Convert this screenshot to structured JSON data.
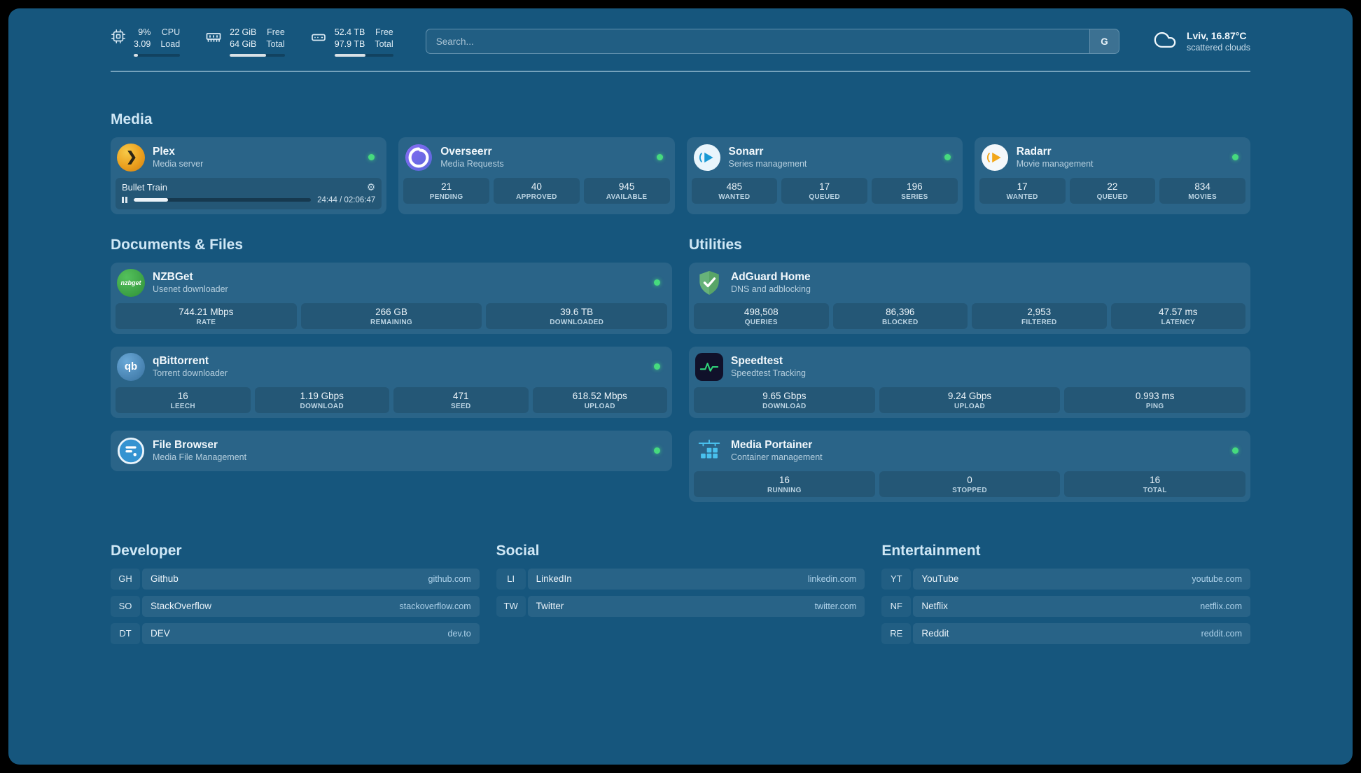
{
  "window": {
    "background": "#16567d",
    "status_green": "#46da7e"
  },
  "header": {
    "cpu": {
      "icon": "cpu-chip-icon",
      "percent": "9%",
      "load": "3.09",
      "label_top": "CPU",
      "label_bottom": "Load",
      "bar_percent": 9
    },
    "memory": {
      "icon": "ram-icon",
      "free": "22 GiB",
      "total": "64 GiB",
      "label_top": "Free",
      "label_bottom": "Total",
      "bar_percent": 66
    },
    "disk": {
      "icon": "hard-drive-icon",
      "free": "52.4 TB",
      "total": "97.9 TB",
      "label_top": "Free",
      "label_bottom": "Total",
      "bar_percent": 53
    },
    "search": {
      "placeholder": "Search...",
      "provider_label": "G"
    },
    "weather": {
      "icon": "cloud-icon",
      "location": "Lviv, 16.87°C",
      "condition": "scattered clouds"
    }
  },
  "sections": {
    "media": "Media",
    "documents": "Documents & Files",
    "utilities": "Utilities"
  },
  "services": {
    "plex": {
      "name": "Plex",
      "desc": "Media server",
      "icon": "plex-icon",
      "online": true,
      "now_playing": {
        "title": "Bullet Train",
        "time": "24:44 / 02:06:47",
        "progress_percent": 19.5
      }
    },
    "overseerr": {
      "name": "Overseerr",
      "desc": "Media Requests",
      "icon": "overseerr-icon",
      "online": true,
      "stats": [
        {
          "value": "21",
          "label": "PENDING"
        },
        {
          "value": "40",
          "label": "APPROVED"
        },
        {
          "value": "945",
          "label": "AVAILABLE"
        }
      ]
    },
    "sonarr": {
      "name": "Sonarr",
      "desc": "Series management",
      "icon": "sonarr-icon",
      "online": true,
      "stats": [
        {
          "value": "485",
          "label": "WANTED"
        },
        {
          "value": "17",
          "label": "QUEUED"
        },
        {
          "value": "196",
          "label": "SERIES"
        }
      ]
    },
    "radarr": {
      "name": "Radarr",
      "desc": "Movie management",
      "icon": "radarr-icon",
      "online": true,
      "stats": [
        {
          "value": "17",
          "label": "WANTED"
        },
        {
          "value": "22",
          "label": "QUEUED"
        },
        {
          "value": "834",
          "label": "MOVIES"
        }
      ]
    },
    "nzbget": {
      "name": "NZBGet",
      "desc": "Usenet downloader",
      "icon": "nzbget-icon",
      "icon_text": "nzbget",
      "online": true,
      "stats": [
        {
          "value": "744.21 Mbps",
          "label": "RATE"
        },
        {
          "value": "266 GB",
          "label": "REMAINING"
        },
        {
          "value": "39.6 TB",
          "label": "DOWNLOADED"
        }
      ]
    },
    "qbittorrent": {
      "name": "qBittorrent",
      "desc": "Torrent downloader",
      "icon": "qbittorrent-icon",
      "icon_text": "qb",
      "online": true,
      "stats": [
        {
          "value": "16",
          "label": "LEECH"
        },
        {
          "value": "1.19 Gbps",
          "label": "DOWNLOAD"
        },
        {
          "value": "471",
          "label": "SEED"
        },
        {
          "value": "618.52 Mbps",
          "label": "UPLOAD"
        }
      ]
    },
    "filebrowser": {
      "name": "File Browser",
      "desc": "Media File Management",
      "icon": "filebrowser-icon",
      "online": true
    },
    "adguard": {
      "name": "AdGuard Home",
      "desc": "DNS and adblocking",
      "icon": "adguard-shield-icon",
      "stats": [
        {
          "value": "498,508",
          "label": "QUERIES"
        },
        {
          "value": "86,396",
          "label": "BLOCKED"
        },
        {
          "value": "2,953",
          "label": "FILTERED"
        },
        {
          "value": "47.57 ms",
          "label": "LATENCY"
        }
      ]
    },
    "speedtest": {
      "name": "Speedtest",
      "desc": "Speedtest Tracking",
      "icon": "speedtest-icon",
      "stats": [
        {
          "value": "9.65 Gbps",
          "label": "DOWNLOAD"
        },
        {
          "value": "9.24 Gbps",
          "label": "UPLOAD"
        },
        {
          "value": "0.993 ms",
          "label": "PING"
        }
      ]
    },
    "portainer": {
      "name": "Media Portainer",
      "desc": "Container management",
      "icon": "portainer-icon",
      "online": true,
      "stats": [
        {
          "value": "16",
          "label": "RUNNING"
        },
        {
          "value": "0",
          "label": "STOPPED"
        },
        {
          "value": "16",
          "label": "TOTAL"
        }
      ]
    }
  },
  "bookmarks": {
    "developer": {
      "title": "Developer",
      "items": [
        {
          "abbr": "GH",
          "name": "Github",
          "url": "github.com"
        },
        {
          "abbr": "SO",
          "name": "StackOverflow",
          "url": "stackoverflow.com"
        },
        {
          "abbr": "DT",
          "name": "DEV",
          "url": "dev.to"
        }
      ]
    },
    "social": {
      "title": "Social",
      "items": [
        {
          "abbr": "LI",
          "name": "LinkedIn",
          "url": "linkedin.com"
        },
        {
          "abbr": "TW",
          "name": "Twitter",
          "url": "twitter.com"
        }
      ]
    },
    "entertainment": {
      "title": "Entertainment",
      "items": [
        {
          "abbr": "YT",
          "name": "YouTube",
          "url": "youtube.com"
        },
        {
          "abbr": "NF",
          "name": "Netflix",
          "url": "netflix.com"
        },
        {
          "abbr": "RE",
          "name": "Reddit",
          "url": "reddit.com"
        }
      ]
    }
  }
}
